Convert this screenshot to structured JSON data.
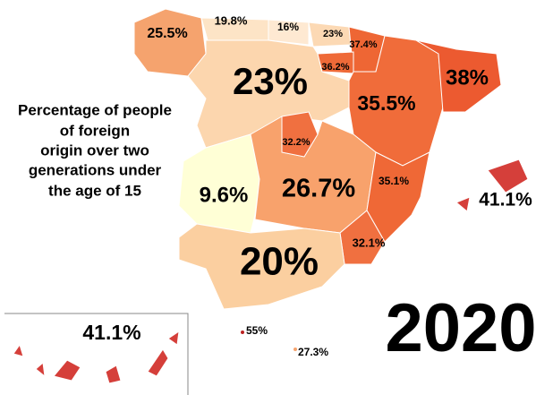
{
  "title": [
    "Percentage of people",
    "of foreign",
    "origin over two",
    "generations under",
    "the age of 15"
  ],
  "year": "2020",
  "regions": [
    {
      "label": "25.5%"
    },
    {
      "label": "19.8%"
    },
    {
      "label": "16%"
    },
    {
      "label": "23%"
    },
    {
      "label": "37.4%"
    },
    {
      "label": "36.2%"
    },
    {
      "label": "23%"
    },
    {
      "label": "35.5%"
    },
    {
      "label": "38%"
    },
    {
      "label": "32.2%"
    },
    {
      "label": "9.6%"
    },
    {
      "label": "26.7%"
    },
    {
      "label": "35.1%"
    },
    {
      "label": "32.1%"
    },
    {
      "label": "20%"
    },
    {
      "label": "41.1%"
    },
    {
      "label": "41.1%"
    },
    {
      "label": "55%"
    },
    {
      "label": "27.3%"
    }
  ]
}
